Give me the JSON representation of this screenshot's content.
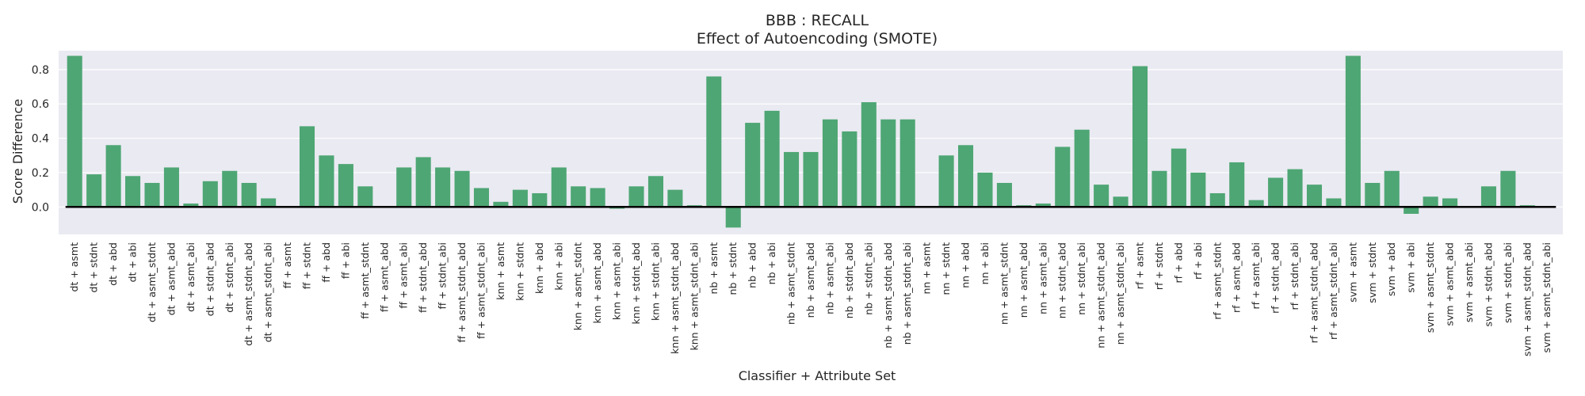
{
  "chart_data": {
    "type": "bar",
    "title": "BBB : RECALL",
    "subtitle": "Effect of Autoencoding (SMOTE)",
    "xlabel": "Classifier + Attribute Set",
    "ylabel": "Score Difference",
    "ylim": [
      -0.16,
      0.91
    ],
    "yticks": [
      0.0,
      0.2,
      0.4,
      0.6,
      0.8
    ],
    "ytick_labels": [
      "0.0",
      "0.2",
      "0.4",
      "0.6",
      "0.8"
    ],
    "grid": true,
    "colors": {
      "bar": "#4ea674",
      "background": "#eaeaf2",
      "grid": "#ffffff",
      "zero_line": "#000000"
    },
    "categories": [
      "dt + asmt",
      "dt + stdnt",
      "dt + abd",
      "dt + abi",
      "dt + asmt_stdnt",
      "dt + asmt_abd",
      "dt + asmt_abi",
      "dt + stdnt_abd",
      "dt + stdnt_abi",
      "dt + asmt_stdnt_abd",
      "dt + asmt_stdnt_abi",
      "ff + asmt",
      "ff + stdnt",
      "ff + abd",
      "ff + abi",
      "ff + asmt_stdnt",
      "ff + asmt_abd",
      "ff + asmt_abi",
      "ff + stdnt_abd",
      "ff + stdnt_abi",
      "ff + asmt_stdnt_abd",
      "ff + asmt_stdnt_abi",
      "knn + asmt",
      "knn + stdnt",
      "knn + abd",
      "knn + abi",
      "knn + asmt_stdnt",
      "knn + asmt_abd",
      "knn + asmt_abi",
      "knn + stdnt_abd",
      "knn + stdnt_abi",
      "knn + asmt_stdnt_abd",
      "knn + asmt_stdnt_abi",
      "nb + asmt",
      "nb + stdnt",
      "nb + abd",
      "nb + abi",
      "nb + asmt_stdnt",
      "nb + asmt_abd",
      "nb + asmt_abi",
      "nb + stdnt_abd",
      "nb + stdnt_abi",
      "nb + asmt_stdnt_abd",
      "nb + asmt_stdnt_abi",
      "nn + asmt",
      "nn + stdnt",
      "nn + abd",
      "nn + abi",
      "nn + asmt_stdnt",
      "nn + asmt_abd",
      "nn + asmt_abi",
      "nn + stdnt_abd",
      "nn + stdnt_abi",
      "nn + asmt_stdnt_abd",
      "nn + asmt_stdnt_abi",
      "rf + asmt",
      "rf + stdnt",
      "rf + abd",
      "rf + abi",
      "rf + asmt_stdnt",
      "rf + asmt_abd",
      "rf + asmt_abi",
      "rf + stdnt_abd",
      "rf + stdnt_abi",
      "rf + asmt_stdnt_abd",
      "rf + asmt_stdnt_abi",
      "svm + asmt",
      "svm + stdnt",
      "svm + abd",
      "svm + abi",
      "svm + asmt_stdnt",
      "svm + asmt_abd",
      "svm + asmt_abi",
      "svm + stdnt_abd",
      "svm + stdnt_abi",
      "svm + asmt_stdnt_abd",
      "svm + asmt_stdnt_abi"
    ],
    "values": [
      0.88,
      0.19,
      0.36,
      0.18,
      0.14,
      0.23,
      0.02,
      0.15,
      0.21,
      0.14,
      0.05,
      0.0,
      0.47,
      0.3,
      0.25,
      0.12,
      0.0,
      0.23,
      0.29,
      0.23,
      0.21,
      0.11,
      0.03,
      0.1,
      0.08,
      0.23,
      0.12,
      0.11,
      -0.01,
      0.12,
      0.18,
      0.1,
      0.01,
      0.76,
      -0.12,
      0.49,
      0.56,
      0.32,
      0.32,
      0.51,
      0.44,
      0.61,
      0.51,
      0.51,
      0.0,
      0.3,
      0.36,
      0.2,
      0.14,
      0.01,
      0.02,
      0.35,
      0.45,
      0.13,
      0.06,
      0.82,
      0.21,
      0.34,
      0.2,
      0.08,
      0.26,
      0.04,
      0.17,
      0.22,
      0.13,
      0.05,
      0.88,
      0.14,
      0.21,
      -0.04,
      0.06,
      0.05,
      0.0,
      0.12,
      0.21,
      0.01,
      0.0
    ]
  }
}
